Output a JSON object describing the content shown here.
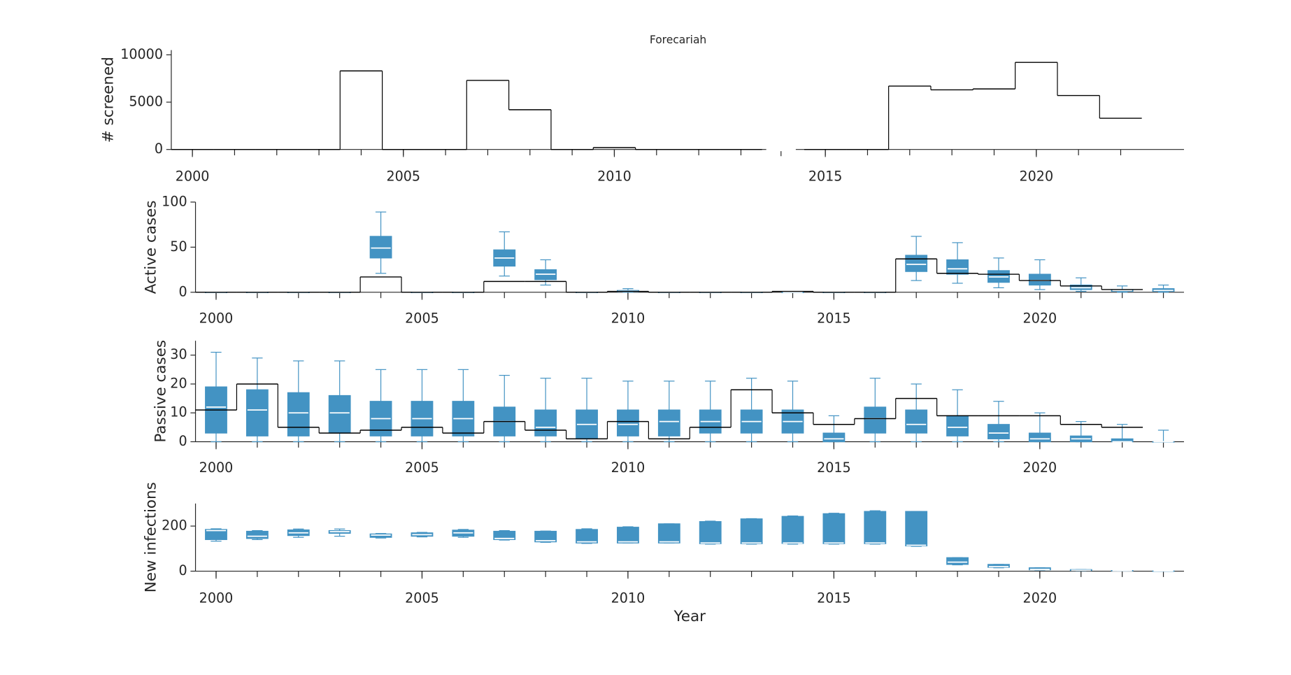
{
  "chart_data": [
    {
      "type": "step",
      "title": "Forecariah",
      "ylabel": "# screened",
      "x": [
        2000,
        2001,
        2002,
        2003,
        2004,
        2005,
        2006,
        2007,
        2008,
        2009,
        2010,
        2011,
        2012,
        2013,
        2015,
        2016,
        2017,
        2018,
        2019,
        2020,
        2021,
        2022
      ],
      "steps": [
        0,
        0,
        0,
        0,
        8300,
        0,
        0,
        7300,
        4200,
        0,
        200,
        0,
        0,
        0,
        0,
        0,
        6700,
        6300,
        6400,
        9200,
        5700,
        3300
      ],
      "line_color": "#000000",
      "xlim": [
        1999.5,
        2023.5
      ],
      "axis_break": [
        2013.6,
        2014.3
      ],
      "xticks": [
        2000,
        2005,
        2010,
        2015,
        2020
      ],
      "ylim": [
        0,
        10500
      ],
      "yticks": [
        0,
        5000,
        10000
      ]
    },
    {
      "type": "box",
      "ylabel": "Active cases",
      "x": [
        2000,
        2001,
        2002,
        2003,
        2004,
        2005,
        2006,
        2007,
        2008,
        2009,
        2010,
        2011,
        2012,
        2013,
        2014,
        2015,
        2016,
        2017,
        2018,
        2019,
        2020,
        2021,
        2022,
        2023
      ],
      "steps": [
        0,
        0,
        0,
        0,
        17,
        0,
        0,
        12,
        12,
        0,
        1,
        0,
        0,
        0,
        1,
        0,
        0,
        37,
        21,
        20,
        13,
        7,
        3,
        null
      ],
      "box": {
        "min": [
          0,
          0,
          0,
          0,
          21,
          0,
          0,
          18,
          8,
          0,
          0,
          0,
          0,
          0,
          0,
          0,
          0,
          13,
          10,
          5,
          3,
          1,
          0,
          0
        ],
        "q1": [
          0,
          0,
          0,
          0,
          38,
          0,
          0,
          29,
          14,
          0,
          0.5,
          0,
          0,
          0,
          0,
          0,
          0,
          23,
          20,
          11,
          8,
          3,
          1,
          1
        ],
        "median": [
          0,
          0,
          0,
          0,
          49,
          0,
          0,
          38,
          20,
          0,
          1,
          0,
          0,
          0,
          0,
          0,
          0,
          31,
          26,
          17,
          13,
          5,
          2,
          2
        ],
        "q3": [
          0,
          0,
          0,
          0,
          62,
          0,
          0,
          47,
          25,
          0,
          2,
          0,
          0,
          0,
          0,
          0,
          0,
          41,
          36,
          24,
          20,
          8,
          3,
          4
        ],
        "max": [
          0,
          0,
          0,
          0,
          89,
          0,
          0,
          67,
          36,
          0,
          4,
          0,
          0,
          0,
          0,
          0,
          0,
          62,
          55,
          38,
          36,
          16,
          7,
          8
        ]
      },
      "box_color": "#4393c3",
      "line_color": "#000000",
      "xlim": [
        1999.5,
        2023.5
      ],
      "xticks": [
        2000,
        2005,
        2010,
        2015,
        2020
      ],
      "ylim": [
        0,
        100
      ],
      "yticks": [
        0,
        50,
        100
      ]
    },
    {
      "type": "box",
      "ylabel": "Passive cases",
      "x": [
        2000,
        2001,
        2002,
        2003,
        2004,
        2005,
        2006,
        2007,
        2008,
        2009,
        2010,
        2011,
        2012,
        2013,
        2014,
        2015,
        2016,
        2017,
        2018,
        2019,
        2020,
        2021,
        2022,
        2023
      ],
      "steps": [
        11,
        20,
        5,
        3,
        4,
        5,
        3,
        7,
        4,
        1,
        7,
        1,
        5,
        18,
        10,
        6,
        8,
        15,
        9,
        9,
        9,
        6,
        5,
        null
      ],
      "box": {
        "min": [
          0,
          0,
          0,
          0,
          0,
          0,
          0,
          0,
          0,
          0,
          0,
          0,
          0,
          0,
          0,
          0,
          0,
          0,
          0,
          0,
          0,
          0,
          0,
          0
        ],
        "q1": [
          3,
          2,
          2,
          3,
          2,
          2,
          2,
          2,
          2,
          1,
          2,
          2,
          3,
          3,
          3,
          0,
          3,
          3,
          2,
          1,
          0,
          0,
          0,
          0
        ],
        "median": [
          12,
          11,
          10,
          10,
          8,
          8,
          8,
          7,
          5,
          6,
          6,
          7,
          7,
          7,
          7,
          1,
          8,
          6,
          5,
          3,
          1,
          1,
          0,
          0
        ],
        "q3": [
          19,
          18,
          17,
          16,
          14,
          14,
          14,
          12,
          11,
          11,
          11,
          11,
          11,
          11,
          11,
          3,
          12,
          11,
          9,
          6,
          3,
          2,
          1,
          0
        ],
        "max": [
          31,
          29,
          28,
          28,
          25,
          25,
          25,
          23,
          22,
          22,
          21,
          21,
          21,
          22,
          21,
          9,
          22,
          20,
          18,
          14,
          10,
          7,
          6,
          4
        ]
      },
      "box_color": "#4393c3",
      "line_color": "#000000",
      "xlim": [
        1999.5,
        2023.5
      ],
      "xticks": [
        2000,
        2005,
        2010,
        2015,
        2020
      ],
      "ylim": [
        0,
        35
      ],
      "yticks": [
        0,
        10,
        20,
        30
      ]
    },
    {
      "type": "box",
      "ylabel": "New infections",
      "xlabel": "Year",
      "x": [
        2000,
        2001,
        2002,
        2003,
        2004,
        2005,
        2006,
        2007,
        2008,
        2009,
        2010,
        2011,
        2012,
        2013,
        2014,
        2015,
        2016,
        2017,
        2018,
        2019,
        2020,
        2021,
        2022,
        2023
      ],
      "box": {
        "min": [
          133,
          140,
          150,
          155,
          147,
          152,
          150,
          138,
          128,
          123,
          125,
          125,
          120,
          120,
          120,
          120,
          120,
          110,
          28,
          15,
          5,
          2,
          1,
          0
        ],
        "q1": [
          140,
          145,
          158,
          168,
          150,
          155,
          155,
          140,
          130,
          125,
          125,
          125,
          122,
          122,
          123,
          122,
          122,
          112,
          30,
          17,
          6,
          3,
          1,
          0
        ],
        "median": [
          180,
          155,
          170,
          175,
          160,
          162,
          170,
          145,
          135,
          130,
          130,
          130,
          125,
          125,
          125,
          125,
          125,
          115,
          40,
          20,
          8,
          4,
          2,
          1
        ],
        "q3": [
          185,
          177,
          183,
          180,
          165,
          170,
          182,
          177,
          177,
          185,
          195,
          210,
          220,
          232,
          243,
          255,
          265,
          265,
          60,
          30,
          15,
          7,
          3,
          1
        ],
        "max": [
          188,
          180,
          187,
          187,
          167,
          172,
          185,
          180,
          178,
          188,
          197,
          210,
          222,
          233,
          245,
          257,
          268,
          265,
          60,
          30,
          15,
          7,
          3,
          1
        ]
      },
      "box_color": "#4393c3",
      "xlim": [
        1999.5,
        2023.5
      ],
      "xticks": [
        2000,
        2005,
        2010,
        2015,
        2020
      ],
      "ylim": [
        0,
        300
      ],
      "yticks": [
        0,
        200
      ]
    }
  ]
}
